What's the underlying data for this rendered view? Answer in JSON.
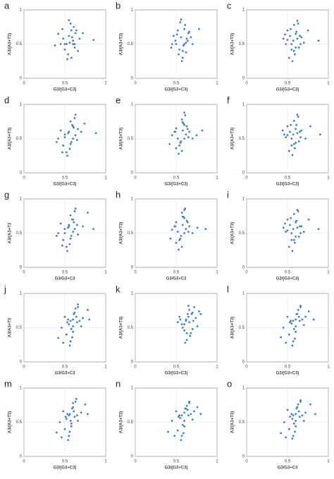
{
  "chart_data": [
    {
      "type": "scatter",
      "panel": "a",
      "xlabel": "G3/(G3+C3)",
      "ylabel": "A3/(A3+T3)",
      "color": "#3b7dd8",
      "xlim": [
        0,
        1
      ],
      "ylim": [
        0,
        1
      ],
      "xticks": [
        0,
        0.5,
        1
      ],
      "yticks": [
        0,
        0.5,
        1
      ],
      "grid": true,
      "x": [
        0.52,
        0.55,
        0.58,
        0.6,
        0.62,
        0.48,
        0.5,
        0.57,
        0.63,
        0.66,
        0.45,
        0.54,
        0.59,
        0.61,
        0.56,
        0.68,
        0.42,
        0.53,
        0.6,
        0.64,
        0.5,
        0.58,
        0.72,
        0.47,
        0.55,
        0.62,
        0.85,
        0.38
      ],
      "y": [
        0.5,
        0.62,
        0.7,
        0.55,
        0.45,
        0.58,
        0.5,
        0.8,
        0.66,
        0.4,
        0.5,
        0.35,
        0.6,
        0.75,
        0.52,
        0.58,
        0.65,
        0.28,
        0.5,
        0.7,
        0.42,
        0.3,
        0.66,
        0.72,
        0.85,
        0.5,
        0.56,
        0.48
      ]
    },
    {
      "type": "scatter",
      "panel": "b",
      "xlabel": "G3/(G3+C3)",
      "ylabel": "A3/(A3+T3)",
      "color": "#3b7dd8",
      "xlim": [
        0,
        1
      ],
      "ylim": [
        0,
        1
      ],
      "xticks": [
        0,
        0.5,
        1
      ],
      "yticks": [
        0,
        0.5,
        1
      ],
      "grid": true,
      "x": [
        0.5,
        0.56,
        0.6,
        0.62,
        0.58,
        0.47,
        0.53,
        0.65,
        0.55,
        0.6,
        0.44,
        0.57,
        0.63,
        0.52,
        0.68,
        0.59,
        0.49,
        0.61,
        0.54,
        0.66,
        0.7,
        0.58,
        0.51,
        0.64,
        0.78,
        0.56,
        0.62,
        0.45
      ],
      "y": [
        0.5,
        0.6,
        0.72,
        0.52,
        0.4,
        0.62,
        0.35,
        0.66,
        0.82,
        0.5,
        0.45,
        0.25,
        0.58,
        0.7,
        0.6,
        0.48,
        0.55,
        0.78,
        0.42,
        0.68,
        0.5,
        0.3,
        0.64,
        0.55,
        0.72,
        0.86,
        0.38,
        0.5
      ]
    },
    {
      "type": "scatter",
      "panel": "c",
      "xlabel": "G3/(G3+C3)",
      "ylabel": "A3/(A3+T3)",
      "color": "#3b7dd8",
      "xlim": [
        0,
        1
      ],
      "ylim": [
        0,
        1
      ],
      "xticks": [
        0,
        0.5,
        1
      ],
      "yticks": [
        0,
        0.5,
        1
      ],
      "grid": true,
      "x": [
        0.55,
        0.6,
        0.58,
        0.62,
        0.5,
        0.65,
        0.52,
        0.57,
        0.63,
        0.48,
        0.6,
        0.54,
        0.67,
        0.59,
        0.45,
        0.61,
        0.56,
        0.7,
        0.53,
        0.64,
        0.58,
        0.5,
        0.62,
        0.75,
        0.55,
        0.66,
        0.47,
        0.88
      ],
      "y": [
        0.5,
        0.65,
        0.4,
        0.58,
        0.7,
        0.62,
        0.3,
        0.55,
        0.8,
        0.5,
        0.45,
        0.72,
        0.6,
        0.35,
        0.58,
        0.68,
        0.25,
        0.52,
        0.62,
        0.45,
        0.78,
        0.56,
        0.84,
        0.7,
        0.42,
        0.5,
        0.64,
        0.55
      ]
    },
    {
      "type": "scatter",
      "panel": "d",
      "xlabel": "G3/(G3+C3)",
      "ylabel": "A3/(A3+T3)",
      "color": "#3b7dd8",
      "xlim": [
        0,
        1
      ],
      "ylim": [
        0,
        1
      ],
      "xticks": [
        0,
        0.5,
        1
      ],
      "yticks": [
        0,
        0.5,
        1
      ],
      "grid": true,
      "x": [
        0.5,
        0.55,
        0.6,
        0.58,
        0.63,
        0.45,
        0.52,
        0.57,
        0.66,
        0.6,
        0.48,
        0.54,
        0.62,
        0.7,
        0.56,
        0.59,
        0.42,
        0.53,
        0.65,
        0.61,
        0.5,
        0.57,
        0.74,
        0.47,
        0.55,
        0.63,
        0.88,
        0.4
      ],
      "y": [
        0.52,
        0.6,
        0.68,
        0.45,
        0.55,
        0.62,
        0.3,
        0.75,
        0.64,
        0.5,
        0.4,
        0.58,
        0.8,
        0.6,
        0.35,
        0.7,
        0.5,
        0.25,
        0.48,
        0.66,
        0.56,
        0.42,
        0.72,
        0.3,
        0.6,
        0.85,
        0.58,
        0.45
      ]
    },
    {
      "type": "scatter",
      "panel": "e",
      "xlabel": "G3/(G3+C3)",
      "ylabel": "A3/(A3+T3)",
      "color": "#3b7dd8",
      "xlim": [
        0,
        1
      ],
      "ylim": [
        0,
        1
      ],
      "xticks": [
        0,
        0.5,
        1
      ],
      "yticks": [
        0,
        0.5,
        1
      ],
      "grid": true,
      "x": [
        0.52,
        0.58,
        0.6,
        0.62,
        0.55,
        0.48,
        0.5,
        0.64,
        0.57,
        0.6,
        0.45,
        0.53,
        0.66,
        0.59,
        0.7,
        0.56,
        0.5,
        0.61,
        0.54,
        0.63,
        0.75,
        0.57,
        0.49,
        0.65,
        0.58,
        0.6,
        0.42,
        0.82
      ],
      "y": [
        0.5,
        0.62,
        0.7,
        0.56,
        0.44,
        0.6,
        0.36,
        0.64,
        0.78,
        0.5,
        0.55,
        0.28,
        0.6,
        0.72,
        0.5,
        0.46,
        0.65,
        0.84,
        0.4,
        0.68,
        0.55,
        0.32,
        0.6,
        0.52,
        0.74,
        0.88,
        0.42,
        0.62
      ]
    },
    {
      "type": "scatter",
      "panel": "f",
      "xlabel": "G3/(G3+C3)",
      "ylabel": "A3/(A3+T3)",
      "color": "#3b7dd8",
      "xlim": [
        0,
        1
      ],
      "ylim": [
        0,
        1
      ],
      "xticks": [
        0,
        0.5,
        1
      ],
      "yticks": [
        0,
        0.5,
        1
      ],
      "grid": true,
      "x": [
        0.55,
        0.6,
        0.58,
        0.62,
        0.5,
        0.65,
        0.52,
        0.57,
        0.63,
        0.48,
        0.6,
        0.54,
        0.67,
        0.59,
        0.46,
        0.61,
        0.56,
        0.72,
        0.53,
        0.64,
        0.58,
        0.5,
        0.62,
        0.78,
        0.55,
        0.66,
        0.44,
        0.9
      ],
      "y": [
        0.5,
        0.64,
        0.42,
        0.58,
        0.68,
        0.6,
        0.32,
        0.56,
        0.82,
        0.52,
        0.44,
        0.7,
        0.62,
        0.36,
        0.56,
        0.7,
        0.26,
        0.5,
        0.6,
        0.46,
        0.76,
        0.55,
        0.85,
        0.68,
        0.4,
        0.52,
        0.62,
        0.56
      ]
    },
    {
      "type": "scatter",
      "panel": "g",
      "xlabel": "G3/G3+C3",
      "ylabel": "A3/(A3+T3",
      "color": "#3b7dd8",
      "xlim": [
        0,
        1
      ],
      "ylim": [
        0,
        1
      ],
      "xticks": [
        0,
        0.5,
        1
      ],
      "yticks": [
        0,
        0.5,
        1
      ],
      "grid": true,
      "x": [
        0.5,
        0.55,
        0.6,
        0.58,
        0.62,
        0.45,
        0.52,
        0.57,
        0.65,
        0.6,
        0.48,
        0.54,
        0.62,
        0.72,
        0.56,
        0.59,
        0.42,
        0.53,
        0.66,
        0.61,
        0.5,
        0.57,
        0.78,
        0.47,
        0.55,
        0.63,
        0.85,
        0.4
      ],
      "y": [
        0.5,
        0.62,
        0.7,
        0.46,
        0.56,
        0.64,
        0.3,
        0.76,
        0.62,
        0.52,
        0.4,
        0.58,
        0.82,
        0.6,
        0.34,
        0.7,
        0.5,
        0.24,
        0.48,
        0.66,
        0.56,
        0.42,
        0.8,
        0.32,
        0.6,
        0.86,
        0.56,
        0.46
      ]
    },
    {
      "type": "scatter",
      "panel": "h",
      "xlabel": "G3/G3+C3",
      "ylabel": "A3/(A3+T3)",
      "color": "#3b7dd8",
      "xlim": [
        0,
        1
      ],
      "ylim": [
        0,
        1
      ],
      "xticks": [
        0,
        0.5,
        1
      ],
      "yticks": [
        0,
        0.5,
        1
      ],
      "grid": true,
      "x": [
        0.52,
        0.58,
        0.6,
        0.62,
        0.55,
        0.48,
        0.5,
        0.64,
        0.57,
        0.6,
        0.45,
        0.53,
        0.66,
        0.59,
        0.7,
        0.56,
        0.5,
        0.61,
        0.54,
        0.63,
        0.76,
        0.57,
        0.49,
        0.65,
        0.58,
        0.6,
        0.43,
        0.86
      ],
      "y": [
        0.52,
        0.62,
        0.72,
        0.56,
        0.42,
        0.6,
        0.36,
        0.66,
        0.8,
        0.5,
        0.55,
        0.26,
        0.6,
        0.74,
        0.5,
        0.46,
        0.66,
        0.86,
        0.4,
        0.68,
        0.58,
        0.3,
        0.6,
        0.52,
        0.74,
        0.84,
        0.42,
        0.56
      ]
    },
    {
      "type": "scatter",
      "panel": "i",
      "xlabel": "G3/(G3+C3)",
      "ylabel": "A3/(A3+T3)",
      "color": "#3b7dd8",
      "xlim": [
        0,
        1
      ],
      "ylim": [
        0,
        1
      ],
      "xticks": [
        0,
        0.5,
        1
      ],
      "yticks": [
        0,
        0.5,
        1
      ],
      "grid": true,
      "x": [
        0.55,
        0.6,
        0.58,
        0.62,
        0.5,
        0.65,
        0.52,
        0.57,
        0.63,
        0.48,
        0.6,
        0.54,
        0.67,
        0.59,
        0.45,
        0.61,
        0.56,
        0.7,
        0.53,
        0.64,
        0.58,
        0.5,
        0.62,
        0.76,
        0.55,
        0.66,
        0.47,
        0.88
      ],
      "y": [
        0.5,
        0.66,
        0.4,
        0.58,
        0.7,
        0.6,
        0.3,
        0.56,
        0.82,
        0.52,
        0.45,
        0.72,
        0.6,
        0.36,
        0.58,
        0.68,
        0.24,
        0.52,
        0.62,
        0.45,
        0.78,
        0.54,
        0.84,
        0.7,
        0.4,
        0.5,
        0.64,
        0.56
      ]
    },
    {
      "type": "scatter",
      "panel": "j",
      "xlabel": "G3/G3+C3",
      "ylabel": "A3/A3+T3",
      "color": "#3b7dd8",
      "xlim": [
        0,
        1
      ],
      "ylim": [
        0,
        1
      ],
      "xticks": [
        0,
        0.5,
        1
      ],
      "yticks": [
        0,
        0.5,
        1
      ],
      "grid": true,
      "x": [
        0.55,
        0.6,
        0.62,
        0.58,
        0.65,
        0.5,
        0.57,
        0.63,
        0.68,
        0.6,
        0.52,
        0.54,
        0.66,
        0.72,
        0.59,
        0.61,
        0.46,
        0.56,
        0.7,
        0.64,
        0.53,
        0.6,
        0.78,
        0.42,
        0.57,
        0.66,
        0.8,
        0.48
      ],
      "y": [
        0.55,
        0.62,
        0.72,
        0.48,
        0.58,
        0.66,
        0.3,
        0.78,
        0.6,
        0.52,
        0.4,
        0.62,
        0.8,
        0.64,
        0.36,
        0.7,
        0.5,
        0.24,
        0.52,
        0.66,
        0.58,
        0.44,
        0.76,
        0.35,
        0.6,
        0.84,
        0.62,
        0.28
      ]
    },
    {
      "type": "scatter",
      "panel": "k",
      "xlabel": "G3/(G3+C3)",
      "ylabel": "A3/(A3+T3)",
      "color": "#3b7dd8",
      "xlim": [
        0,
        1
      ],
      "ylim": [
        0,
        1
      ],
      "xticks": [
        0,
        0.5,
        1
      ],
      "yticks": [
        0,
        0.5,
        1
      ],
      "grid": true,
      "x": [
        0.6,
        0.65,
        0.68,
        0.62,
        0.7,
        0.55,
        0.63,
        0.66,
        0.72,
        0.58,
        0.6,
        0.64,
        0.74,
        0.67,
        0.52,
        0.69,
        0.61,
        0.76,
        0.62,
        0.7,
        0.66,
        0.57,
        0.65,
        0.8,
        0.63,
        0.71,
        0.54,
        0.78
      ],
      "y": [
        0.55,
        0.66,
        0.42,
        0.6,
        0.72,
        0.62,
        0.32,
        0.58,
        0.8,
        0.5,
        0.46,
        0.7,
        0.64,
        0.38,
        0.58,
        0.7,
        0.28,
        0.52,
        0.62,
        0.48,
        0.76,
        0.55,
        0.82,
        0.7,
        0.42,
        0.6,
        0.66,
        0.74
      ]
    },
    {
      "type": "scatter",
      "panel": "l",
      "xlabel": "G3/(G3+C3)",
      "ylabel": "A3/(A3+T3)",
      "color": "#3b7dd8",
      "xlim": [
        0,
        1
      ],
      "ylim": [
        0,
        1
      ],
      "xticks": [
        0,
        0.5,
        1
      ],
      "yticks": [
        0,
        0.5,
        1
      ],
      "grid": true,
      "x": [
        0.55,
        0.6,
        0.62,
        0.58,
        0.65,
        0.5,
        0.57,
        0.63,
        0.68,
        0.6,
        0.52,
        0.54,
        0.66,
        0.72,
        0.59,
        0.61,
        0.45,
        0.56,
        0.7,
        0.64,
        0.53,
        0.6,
        0.76,
        0.42,
        0.57,
        0.66,
        0.82,
        0.48
      ],
      "y": [
        0.56,
        0.62,
        0.7,
        0.48,
        0.6,
        0.66,
        0.3,
        0.76,
        0.62,
        0.52,
        0.4,
        0.6,
        0.8,
        0.66,
        0.34,
        0.7,
        0.5,
        0.24,
        0.54,
        0.66,
        0.58,
        0.44,
        0.74,
        0.36,
        0.6,
        0.82,
        0.62,
        0.28
      ]
    },
    {
      "type": "scatter",
      "panel": "m",
      "xlabel": "G3/(G3+C3)",
      "ylabel": "A3/(A3+T3)",
      "color": "#3b7dd8",
      "xlim": [
        0,
        1
      ],
      "ylim": [
        0,
        1
      ],
      "xticks": [
        0,
        0.5,
        1
      ],
      "yticks": [
        0,
        0.5,
        1
      ],
      "grid": true,
      "x": [
        0.52,
        0.56,
        0.6,
        0.58,
        0.62,
        0.48,
        0.55,
        0.6,
        0.65,
        0.57,
        0.5,
        0.53,
        0.63,
        0.7,
        0.56,
        0.59,
        0.44,
        0.54,
        0.66,
        0.61,
        0.51,
        0.58,
        0.75,
        0.4,
        0.55,
        0.64,
        0.78,
        0.46
      ],
      "y": [
        0.55,
        0.62,
        0.72,
        0.48,
        0.58,
        0.66,
        0.3,
        0.78,
        0.6,
        0.52,
        0.4,
        0.62,
        0.8,
        0.64,
        0.36,
        0.7,
        0.5,
        0.24,
        0.52,
        0.66,
        0.58,
        0.44,
        0.76,
        0.35,
        0.6,
        0.84,
        0.62,
        0.28
      ]
    },
    {
      "type": "scatter",
      "panel": "n",
      "xlabel": "G3/(G3+C3)",
      "ylabel": "A3/(A3+T3)",
      "color": "#3b7dd8",
      "xlim": [
        0,
        1
      ],
      "ylim": [
        0,
        1
      ],
      "xticks": [
        0,
        0.5,
        1
      ],
      "yticks": [
        0,
        0.5,
        1
      ],
      "grid": true,
      "x": [
        0.55,
        0.6,
        0.62,
        0.58,
        0.65,
        0.5,
        0.57,
        0.63,
        0.68,
        0.6,
        0.52,
        0.54,
        0.66,
        0.72,
        0.59,
        0.61,
        0.45,
        0.56,
        0.7,
        0.64,
        0.53,
        0.6,
        0.76,
        0.4,
        0.57,
        0.66,
        0.8,
        0.48
      ],
      "y": [
        0.56,
        0.64,
        0.7,
        0.46,
        0.6,
        0.66,
        0.3,
        0.74,
        0.62,
        0.52,
        0.38,
        0.6,
        0.78,
        0.66,
        0.34,
        0.7,
        0.52,
        0.24,
        0.54,
        0.68,
        0.58,
        0.44,
        0.72,
        0.36,
        0.6,
        0.8,
        0.62,
        0.3
      ]
    },
    {
      "type": "scatter",
      "panel": "o",
      "xlabel": "G3/G3+C3",
      "ylabel": "A3/(A3+T3)",
      "color": "#3b7dd8",
      "xlim": [
        0,
        1
      ],
      "ylim": [
        0,
        1
      ],
      "xticks": [
        0,
        0.5,
        1
      ],
      "yticks": [
        0,
        0.5,
        1
      ],
      "grid": true,
      "x": [
        0.56,
        0.6,
        0.62,
        0.58,
        0.65,
        0.5,
        0.57,
        0.63,
        0.68,
        0.6,
        0.52,
        0.55,
        0.66,
        0.72,
        0.59,
        0.61,
        0.46,
        0.56,
        0.7,
        0.64,
        0.53,
        0.6,
        0.78,
        0.42,
        0.57,
        0.66,
        0.84,
        0.48
      ],
      "y": [
        0.55,
        0.62,
        0.72,
        0.48,
        0.58,
        0.68,
        0.3,
        0.76,
        0.6,
        0.52,
        0.4,
        0.62,
        0.8,
        0.64,
        0.36,
        0.7,
        0.5,
        0.26,
        0.52,
        0.66,
        0.58,
        0.44,
        0.76,
        0.34,
        0.6,
        0.82,
        0.62,
        0.28
      ]
    }
  ]
}
